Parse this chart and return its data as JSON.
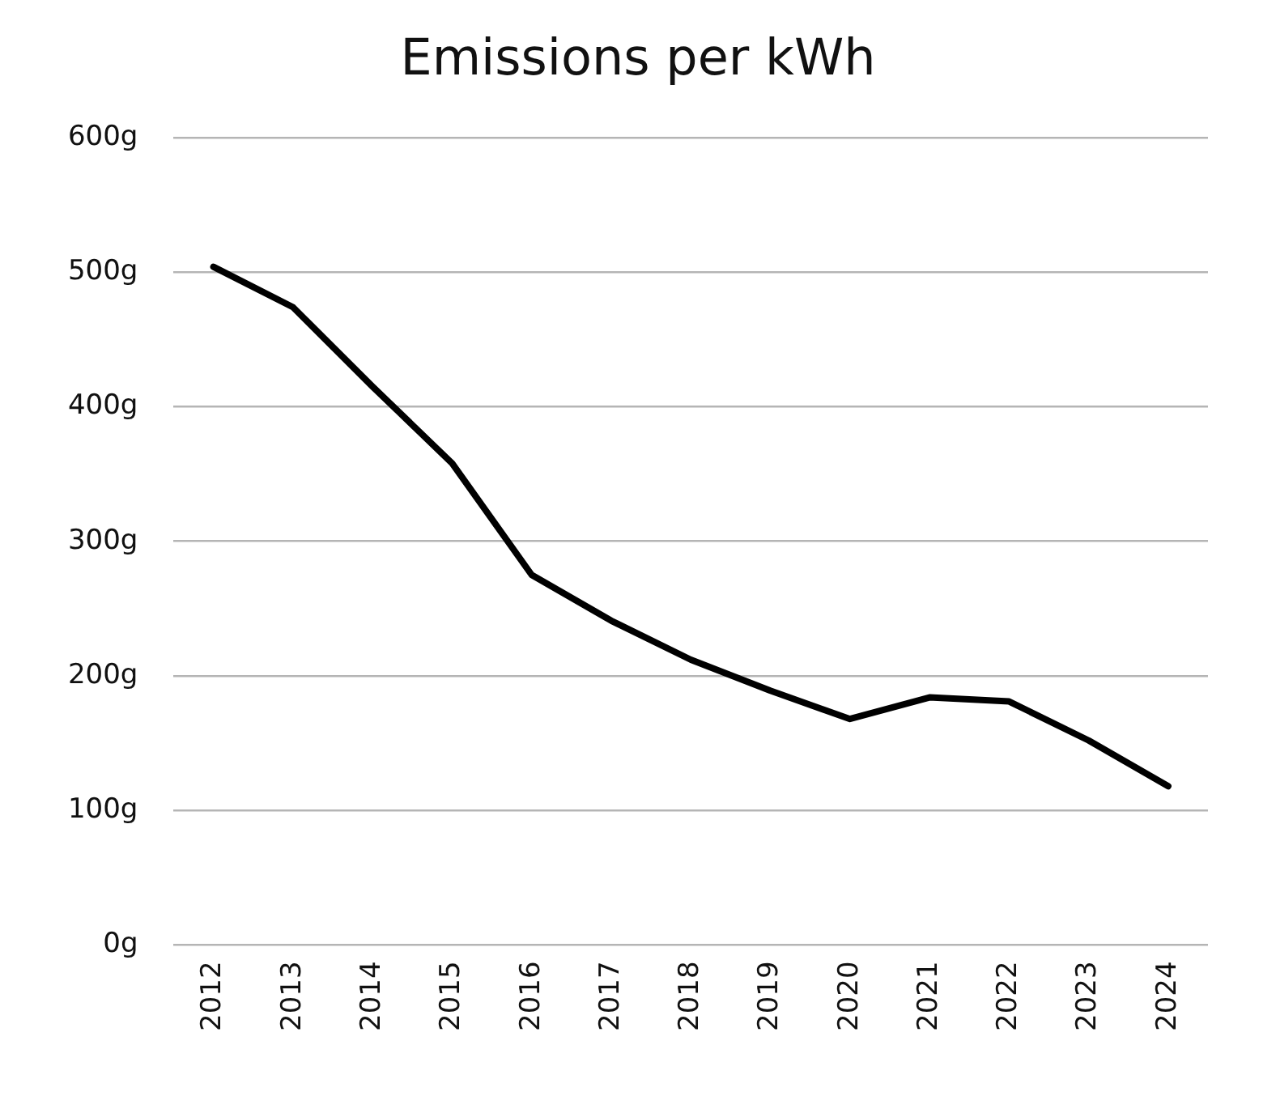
{
  "chart_data": {
    "type": "line",
    "title": "Emissions per kWh",
    "categories": [
      "2012",
      "2013",
      "2014",
      "2015",
      "2016",
      "2017",
      "2018",
      "2019",
      "2020",
      "2021",
      "2022",
      "2023",
      "2024"
    ],
    "series": [
      {
        "color": "#000000",
        "values": [
          504,
          474,
          415,
          358,
          275,
          241,
          212,
          189,
          168,
          184,
          181,
          152,
          118
        ]
      }
    ],
    "ylim": [
      0,
      600
    ],
    "yticks": [
      {
        "value": 0,
        "label": "0g"
      },
      {
        "value": 100,
        "label": "100g"
      },
      {
        "value": 200,
        "label": "200g"
      },
      {
        "value": 300,
        "label": "300g"
      },
      {
        "value": 400,
        "label": "400g"
      },
      {
        "value": 500,
        "label": "500g"
      },
      {
        "value": 600,
        "label": "600g"
      }
    ],
    "grid": "y",
    "marker": "none",
    "line_style": "solid",
    "legend": false
  }
}
